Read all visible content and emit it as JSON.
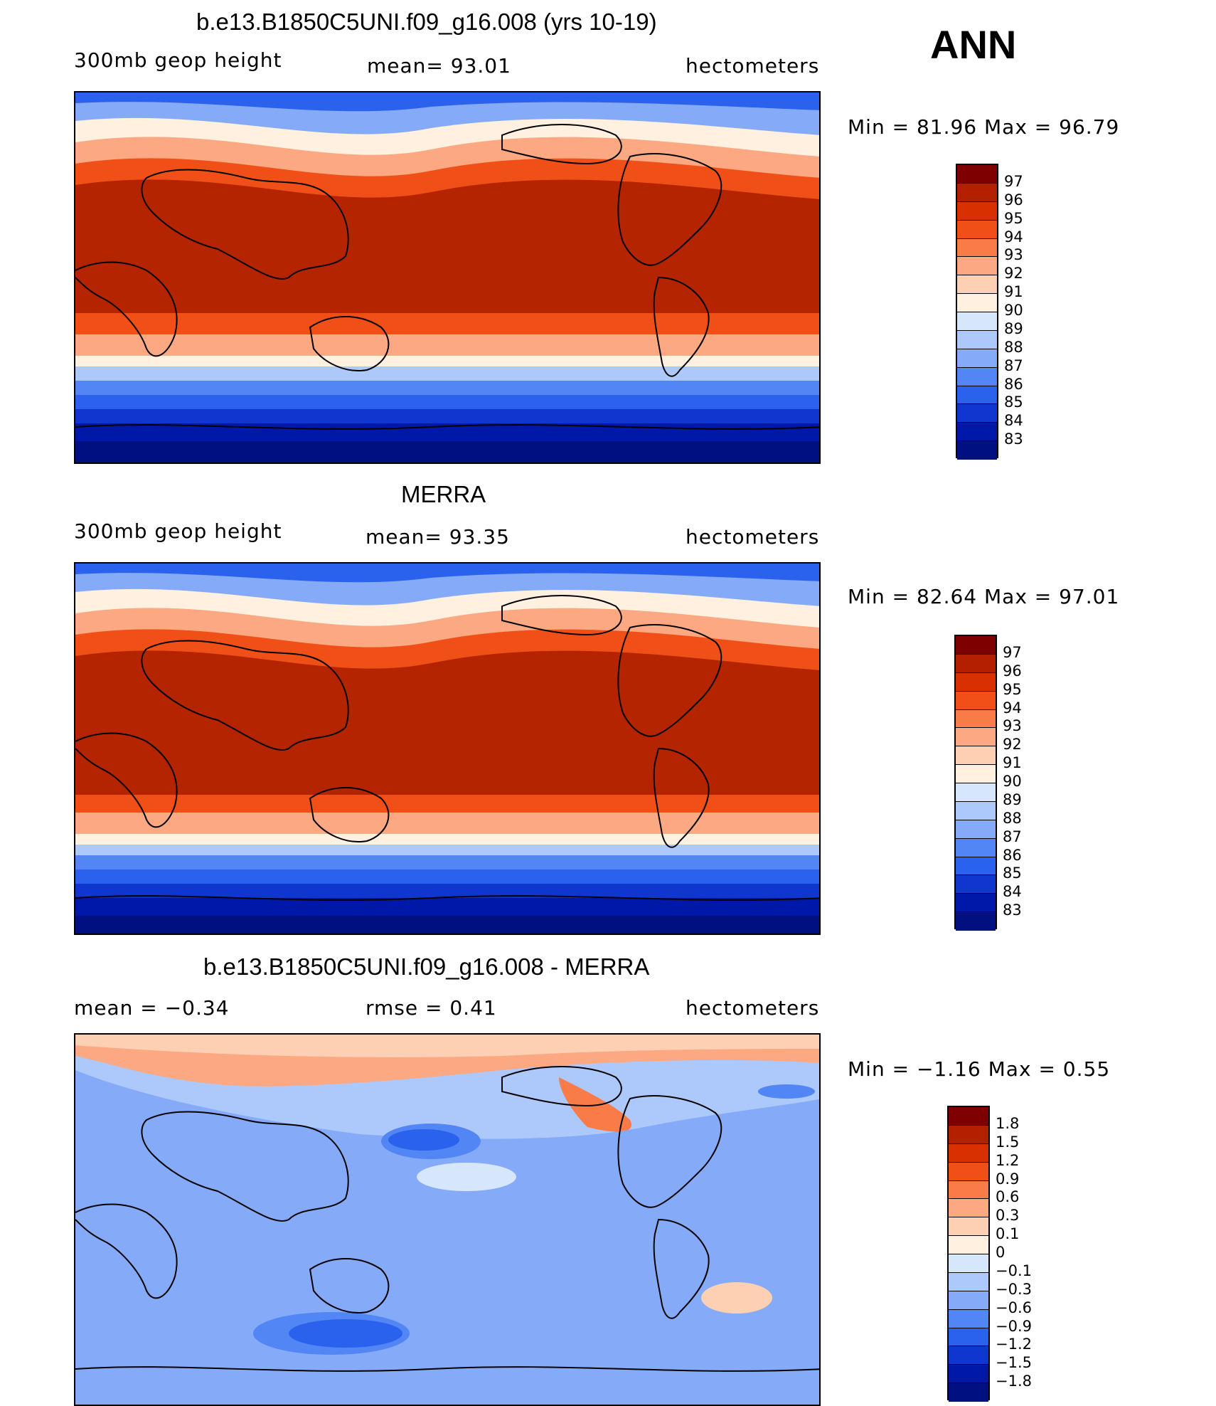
{
  "season": "ANN",
  "panels": [
    {
      "id": "model",
      "title": "b.e13.B1850C5UNI.f09_g16.008 (yrs 10-19)",
      "left_label": "300mb  geop  height",
      "center_label": "mean=   93.01",
      "right_label": "hectometers",
      "minmax": "Min  =    81.96  Max  =    96.79"
    },
    {
      "id": "obs",
      "title": "MERRA",
      "left_label": "300mb  geop  height",
      "center_label": "mean=   93.35",
      "right_label": "hectometers",
      "minmax": "Min  =    82.64  Max  =    97.01"
    },
    {
      "id": "diff",
      "title": "b.e13.B1850C5UNI.f09_g16.008 - MERRA",
      "left_label": "mean  =    −0.34",
      "center_label": "rmse  =     0.41",
      "right_label": "hectometers",
      "minmax": "Min  =   −1.16  Max  =      0.55"
    }
  ],
  "colorbar_main": {
    "labels": [
      "97",
      "96",
      "95",
      "94",
      "93",
      "92",
      "91",
      "90",
      "89",
      "88",
      "87",
      "86",
      "85",
      "84",
      "83"
    ],
    "colors": [
      "#7f0000",
      "#b22000",
      "#d83000",
      "#f05018",
      "#f97b48",
      "#fca882",
      "#fdd0b4",
      "#fff0e0",
      "#d6e6fb",
      "#adc8fa",
      "#84aaf8",
      "#5286f5",
      "#2a62ee",
      "#1036d0",
      "#0018a8",
      "#001080"
    ]
  },
  "colorbar_diff": {
    "labels": [
      "1.8",
      "1.5",
      "1.2",
      "0.9",
      "0.6",
      "0.3",
      "0.1",
      "0",
      "−0.1",
      "−0.3",
      "−0.6",
      "−0.9",
      "−1.2",
      "−1.5",
      "−1.8"
    ],
    "colors": [
      "#7f0000",
      "#b22000",
      "#d83000",
      "#f05018",
      "#f97b48",
      "#fca882",
      "#fdd0b4",
      "#fff0e0",
      "#d6e6fb",
      "#adc8fa",
      "#84aaf8",
      "#5286f5",
      "#2a62ee",
      "#1036d0",
      "#0018a8",
      "#001080"
    ]
  }
}
